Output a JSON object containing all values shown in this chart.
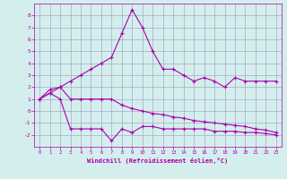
{
  "xlabel": "Windchill (Refroidissement éolien,°C)",
  "line1_x": [
    0,
    1,
    2,
    3,
    4,
    5,
    6,
    7,
    8,
    9,
    10,
    11,
    12,
    13,
    14,
    15,
    16,
    17,
    18,
    19,
    20,
    21,
    22,
    23
  ],
  "line1_y": [
    1.0,
    1.8,
    2.0,
    2.5,
    3.0,
    3.5,
    4.0,
    4.5,
    6.5,
    8.5,
    7.0,
    5.0,
    3.5,
    3.5,
    3.0,
    2.5,
    2.8,
    2.5,
    2.0,
    2.8,
    2.5,
    2.5,
    2.5,
    2.5
  ],
  "line2_x": [
    0,
    1,
    2,
    3,
    4,
    5,
    6,
    7,
    8,
    9,
    10,
    11,
    12,
    13,
    14,
    15,
    16,
    17,
    18,
    19,
    20,
    21,
    22,
    23
  ],
  "line2_y": [
    1.0,
    1.5,
    2.0,
    1.0,
    1.0,
    1.0,
    1.0,
    1.0,
    0.5,
    0.2,
    0.0,
    -0.2,
    -0.3,
    -0.5,
    -0.6,
    -0.8,
    -0.9,
    -1.0,
    -1.1,
    -1.2,
    -1.3,
    -1.5,
    -1.6,
    -1.8
  ],
  "line3_x": [
    0,
    1,
    2,
    3,
    4,
    5,
    6,
    7,
    8,
    9,
    10,
    11,
    12,
    13,
    14,
    15,
    16,
    17,
    18,
    19,
    20,
    21,
    22,
    23
  ],
  "line3_y": [
    1.0,
    1.5,
    1.0,
    -1.5,
    -1.5,
    -1.5,
    -1.5,
    -2.5,
    -1.5,
    -1.8,
    -1.3,
    -1.3,
    -1.5,
    -1.5,
    -1.5,
    -1.5,
    -1.5,
    -1.7,
    -1.7,
    -1.7,
    -1.8,
    -1.8,
    -1.9,
    -2.0
  ],
  "color": "#aa00aa",
  "bg_color": "#d4eeee",
  "grid_color": "#9999bb",
  "ylim": [
    -3,
    9
  ],
  "xlim": [
    -0.5,
    23.5
  ],
  "yticks": [
    -2,
    -1,
    0,
    1,
    2,
    3,
    4,
    5,
    6,
    7,
    8
  ],
  "xticks": [
    0,
    1,
    2,
    3,
    4,
    5,
    6,
    7,
    8,
    9,
    10,
    11,
    12,
    13,
    14,
    15,
    16,
    17,
    18,
    19,
    20,
    21,
    22,
    23
  ]
}
